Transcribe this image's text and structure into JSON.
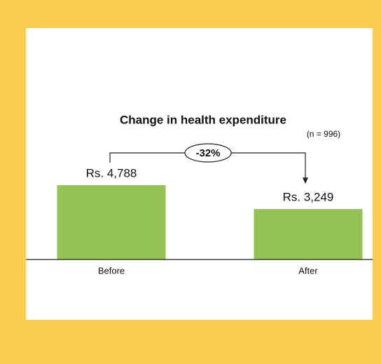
{
  "chart_data": {
    "type": "bar",
    "title": "Change in health expenditure",
    "note": "(n = 996)",
    "change_label": "-32%",
    "categories": [
      "Before",
      "After"
    ],
    "values": [
      4788,
      3249
    ],
    "value_labels": [
      "Rs. 4,788",
      "Rs. 3,249"
    ],
    "color": "#92c353"
  }
}
